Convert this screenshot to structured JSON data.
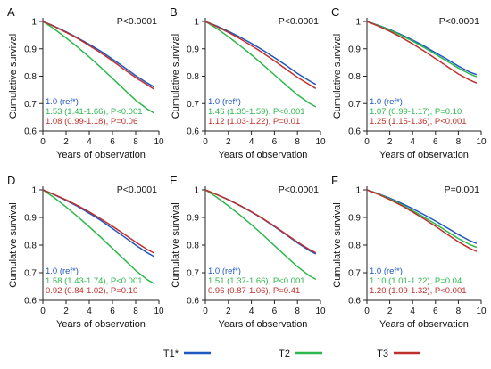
{
  "figure": {
    "legend": [
      {
        "label": "T1*",
        "color": "#1f56c2"
      },
      {
        "label": "T2",
        "color": "#2db84d"
      },
      {
        "label": "T3",
        "color": "#c0302b"
      }
    ]
  },
  "chart_data": [
    {
      "type": "line",
      "panel_letter": "A",
      "pvalue": "P<0.0001",
      "xlabel": "Years of observation",
      "ylabel": "Cumulative survival",
      "xlim": [
        0,
        10
      ],
      "ylim": [
        0.6,
        1.0
      ],
      "xticks": [
        0,
        2,
        4,
        6,
        8,
        10
      ],
      "yticks": [
        0.6,
        0.7,
        0.8,
        0.9,
        1.0
      ],
      "series": [
        {
          "color": "#1f56c2",
          "x": [
            0,
            1,
            2,
            3,
            4,
            5,
            6,
            7,
            8,
            9,
            9.6
          ],
          "y": [
            1.0,
            0.982,
            0.962,
            0.94,
            0.916,
            0.891,
            0.862,
            0.833,
            0.802,
            0.775,
            0.76
          ]
        },
        {
          "color": "#2db84d",
          "x": [
            0,
            1,
            2,
            3,
            4,
            5,
            6,
            7,
            8,
            9,
            9.6
          ],
          "y": [
            1.0,
            0.972,
            0.94,
            0.906,
            0.87,
            0.832,
            0.792,
            0.752,
            0.712,
            0.68,
            0.665
          ]
        },
        {
          "color": "#c0302b",
          "x": [
            0,
            1,
            2,
            3,
            4,
            5,
            6,
            7,
            8,
            9,
            9.6
          ],
          "y": [
            1.0,
            0.981,
            0.96,
            0.938,
            0.912,
            0.885,
            0.856,
            0.825,
            0.795,
            0.768,
            0.752
          ]
        }
      ],
      "annotations": [
        {
          "color": "#1f56c2",
          "text": "1.0 (ref*)"
        },
        {
          "color": "#2db84d",
          "text": "1.53 (1.41-1.66), P<0.001"
        },
        {
          "color": "#c0302b",
          "text": "1.08 (0.99-1.18), P=0.06"
        }
      ]
    },
    {
      "type": "line",
      "panel_letter": "B",
      "pvalue": "P<0.0001",
      "xlabel": "Years of observation",
      "ylabel": "Cumulative survival",
      "xlim": [
        0,
        10
      ],
      "ylim": [
        0.6,
        1.0
      ],
      "xticks": [
        0,
        2,
        4,
        6,
        8,
        10
      ],
      "yticks": [
        0.6,
        0.7,
        0.8,
        0.9,
        1.0
      ],
      "series": [
        {
          "color": "#1f56c2",
          "x": [
            0,
            1,
            2,
            3,
            4,
            5,
            6,
            7,
            8,
            9,
            9.6
          ],
          "y": [
            1.0,
            0.983,
            0.964,
            0.943,
            0.92,
            0.895,
            0.868,
            0.84,
            0.81,
            0.784,
            0.77
          ]
        },
        {
          "color": "#2db84d",
          "x": [
            0,
            1,
            2,
            3,
            4,
            5,
            6,
            7,
            8,
            9,
            9.6
          ],
          "y": [
            1.0,
            0.974,
            0.944,
            0.912,
            0.878,
            0.842,
            0.805,
            0.768,
            0.732,
            0.702,
            0.688
          ]
        },
        {
          "color": "#c0302b",
          "x": [
            0,
            1,
            2,
            3,
            4,
            5,
            6,
            7,
            8,
            9,
            9.6
          ],
          "y": [
            1.0,
            0.981,
            0.96,
            0.937,
            0.912,
            0.885,
            0.856,
            0.826,
            0.796,
            0.77,
            0.755
          ]
        }
      ],
      "annotations": [
        {
          "color": "#1f56c2",
          "text": "1.0 (ref*)"
        },
        {
          "color": "#2db84d",
          "text": "1.46 (1.35-1.59), P<0.001"
        },
        {
          "color": "#c0302b",
          "text": "1.12 (1.03-1.22), P=0.01"
        }
      ]
    },
    {
      "type": "line",
      "panel_letter": "C",
      "pvalue": "P<0.0001",
      "xlabel": "Years of observation",
      "ylabel": "Cumulative survival",
      "xlim": [
        0,
        10
      ],
      "ylim": [
        0.6,
        1.0
      ],
      "xticks": [
        0,
        2,
        4,
        6,
        8,
        10
      ],
      "yticks": [
        0.6,
        0.7,
        0.8,
        0.9,
        1.0
      ],
      "series": [
        {
          "color": "#1f56c2",
          "x": [
            0,
            1,
            2,
            3,
            4,
            5,
            6,
            7,
            8,
            9,
            9.6
          ],
          "y": [
            1.0,
            0.986,
            0.97,
            0.952,
            0.932,
            0.91,
            0.886,
            0.862,
            0.837,
            0.815,
            0.806
          ]
        },
        {
          "color": "#2db84d",
          "x": [
            0,
            1,
            2,
            3,
            4,
            5,
            6,
            7,
            8,
            9,
            9.6
          ],
          "y": [
            1.0,
            0.985,
            0.968,
            0.949,
            0.928,
            0.905,
            0.88,
            0.855,
            0.83,
            0.808,
            0.798
          ]
        },
        {
          "color": "#c0302b",
          "x": [
            0,
            1,
            2,
            3,
            4,
            5,
            6,
            7,
            8,
            9,
            9.6
          ],
          "y": [
            1.0,
            0.983,
            0.964,
            0.942,
            0.918,
            0.892,
            0.864,
            0.836,
            0.808,
            0.786,
            0.775
          ]
        }
      ],
      "annotations": [
        {
          "color": "#1f56c2",
          "text": "1.0 (ref*)"
        },
        {
          "color": "#2db84d",
          "text": "1.07 (0.99-1.17), P=0.10"
        },
        {
          "color": "#c0302b",
          "text": "1.25 (1.15-1.36), P<0.001"
        }
      ]
    },
    {
      "type": "line",
      "panel_letter": "D",
      "pvalue": "P<0.0001",
      "xlabel": "Years of observation",
      "ylabel": "Cumulative survival",
      "xlim": [
        0,
        10
      ],
      "ylim": [
        0.6,
        1.0
      ],
      "xticks": [
        0,
        2,
        4,
        6,
        8,
        10
      ],
      "yticks": [
        0.6,
        0.7,
        0.8,
        0.9,
        1.0
      ],
      "series": [
        {
          "color": "#1f56c2",
          "x": [
            0,
            1,
            2,
            3,
            4,
            5,
            6,
            7,
            8,
            9,
            9.6
          ],
          "y": [
            1.0,
            0.982,
            0.962,
            0.94,
            0.915,
            0.889,
            0.86,
            0.83,
            0.8,
            0.772,
            0.758
          ]
        },
        {
          "color": "#2db84d",
          "x": [
            0,
            1,
            2,
            3,
            4,
            5,
            6,
            7,
            8,
            9,
            9.6
          ],
          "y": [
            1.0,
            0.971,
            0.938,
            0.903,
            0.866,
            0.828,
            0.788,
            0.748,
            0.708,
            0.675,
            0.66
          ]
        },
        {
          "color": "#c0302b",
          "x": [
            0,
            1,
            2,
            3,
            4,
            5,
            6,
            7,
            8,
            9,
            9.6
          ],
          "y": [
            1.0,
            0.983,
            0.964,
            0.943,
            0.92,
            0.895,
            0.868,
            0.84,
            0.811,
            0.784,
            0.771
          ]
        }
      ],
      "annotations": [
        {
          "color": "#1f56c2",
          "text": "1.0 (ref*)"
        },
        {
          "color": "#2db84d",
          "text": "1.58 (1.43-1.74), P<0.001"
        },
        {
          "color": "#c0302b",
          "text": "0.92 (0.84-1.02), P=0.10"
        }
      ]
    },
    {
      "type": "line",
      "panel_letter": "E",
      "pvalue": "P<0.0001",
      "xlabel": "Years of observation",
      "ylabel": "Cumulative survival",
      "xlim": [
        0,
        10
      ],
      "ylim": [
        0.6,
        1.0
      ],
      "xticks": [
        0,
        2,
        4,
        6,
        8,
        10
      ],
      "yticks": [
        0.6,
        0.7,
        0.8,
        0.9,
        1.0
      ],
      "series": [
        {
          "color": "#1f56c2",
          "x": [
            0,
            1,
            2,
            3,
            4,
            5,
            6,
            7,
            8,
            9,
            9.6
          ],
          "y": [
            1.0,
            0.983,
            0.964,
            0.943,
            0.92,
            0.895,
            0.867,
            0.838,
            0.808,
            0.781,
            0.768
          ]
        },
        {
          "color": "#2db84d",
          "x": [
            0,
            1,
            2,
            3,
            4,
            5,
            6,
            7,
            8,
            9,
            9.6
          ],
          "y": [
            1.0,
            0.973,
            0.942,
            0.909,
            0.874,
            0.837,
            0.798,
            0.76,
            0.722,
            0.69,
            0.676
          ]
        },
        {
          "color": "#c0302b",
          "x": [
            0,
            1,
            2,
            3,
            4,
            5,
            6,
            7,
            8,
            9,
            9.6
          ],
          "y": [
            1.0,
            0.983,
            0.965,
            0.944,
            0.921,
            0.896,
            0.869,
            0.84,
            0.811,
            0.785,
            0.772
          ]
        }
      ],
      "annotations": [
        {
          "color": "#1f56c2",
          "text": "1.0 (ref*)"
        },
        {
          "color": "#2db84d",
          "text": "1.51 (1.37-1.66), P<0.001"
        },
        {
          "color": "#c0302b",
          "text": "0.96 (0.87-1.06), P=0.41"
        }
      ]
    },
    {
      "type": "line",
      "panel_letter": "F",
      "pvalue": "P=0.001",
      "xlabel": "Years of observation",
      "ylabel": "Cumulative survival",
      "xlim": [
        0,
        10
      ],
      "ylim": [
        0.6,
        1.0
      ],
      "xticks": [
        0,
        2,
        4,
        6,
        8,
        10
      ],
      "yticks": [
        0.6,
        0.7,
        0.8,
        0.9,
        1.0
      ],
      "series": [
        {
          "color": "#1f56c2",
          "x": [
            0,
            1,
            2,
            3,
            4,
            5,
            6,
            7,
            8,
            9,
            9.6
          ],
          "y": [
            1.0,
            0.986,
            0.97,
            0.952,
            0.932,
            0.91,
            0.887,
            0.863,
            0.838,
            0.816,
            0.806
          ]
        },
        {
          "color": "#2db84d",
          "x": [
            0,
            1,
            2,
            3,
            4,
            5,
            6,
            7,
            8,
            9,
            9.6
          ],
          "y": [
            1.0,
            0.985,
            0.967,
            0.947,
            0.925,
            0.901,
            0.876,
            0.85,
            0.824,
            0.802,
            0.792
          ]
        },
        {
          "color": "#c0302b",
          "x": [
            0,
            1,
            2,
            3,
            4,
            5,
            6,
            7,
            8,
            9,
            9.6
          ],
          "y": [
            1.0,
            0.984,
            0.965,
            0.944,
            0.92,
            0.895,
            0.868,
            0.84,
            0.812,
            0.788,
            0.777
          ]
        }
      ],
      "annotations": [
        {
          "color": "#1f56c2",
          "text": "1.0 (ref*)"
        },
        {
          "color": "#2db84d",
          "text": "1.10 (1.01-1.22), P=0.04"
        },
        {
          "color": "#c0302b",
          "text": "1.20 (1.09-1.32), P<0.001"
        }
      ]
    }
  ]
}
